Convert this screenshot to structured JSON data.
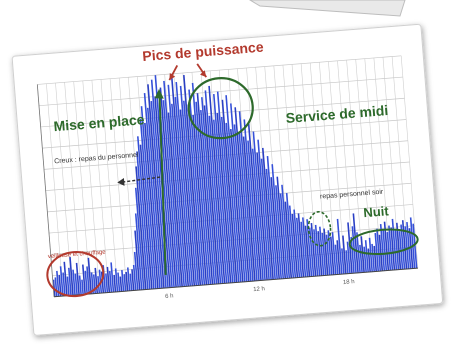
{
  "chart_data": {
    "type": "bar",
    "series": [
      {
        "values": [
          8,
          9,
          12,
          10,
          14,
          11,
          16,
          9,
          13,
          18,
          12,
          10,
          15,
          9,
          7,
          14,
          11,
          13,
          17,
          10,
          9,
          12,
          8,
          11,
          10,
          13,
          9,
          12,
          10,
          14,
          8,
          11,
          9,
          7,
          10,
          8,
          9,
          11,
          8,
          10,
          12,
          18,
          28,
          36,
          48,
          58,
          65,
          72,
          68,
          80,
          86,
          78,
          92,
          85,
          96,
          88,
          98,
          90,
          100,
          84,
          94,
          88,
          97,
          82,
          95,
          86,
          100,
          89,
          96,
          83,
          94,
          87,
          99,
          85,
          92,
          80,
          95,
          86,
          90,
          82,
          88,
          84,
          91,
          79,
          93,
          77,
          89,
          80,
          90,
          78,
          86,
          75,
          88,
          72,
          84,
          74,
          82,
          70,
          80,
          68,
          76,
          66,
          74,
          62,
          70,
          60,
          66,
          57,
          62,
          52,
          58,
          48,
          54,
          44,
          48,
          40,
          44,
          36,
          40,
          34,
          30,
          32,
          28,
          30,
          26,
          28,
          24,
          27,
          23,
          25,
          22,
          24,
          21,
          23,
          20,
          22,
          19,
          21,
          18,
          20,
          14,
          16,
          26,
          12,
          18,
          11,
          15,
          24,
          17,
          22,
          28,
          19,
          13,
          17,
          12,
          15,
          11,
          16,
          13,
          12,
          18,
          20,
          17,
          22,
          19,
          23,
          18,
          21,
          20,
          24,
          19,
          22,
          18,
          21,
          23,
          20,
          22,
          19,
          24,
          21
        ]
      }
    ],
    "ylim": [
      0,
      100
    ],
    "x_ticks": [
      "6 h",
      "12 h",
      "18 h"
    ],
    "annotations": [
      {
        "id": "peaks",
        "text": "Pics de puissance",
        "color": "#b33a2e"
      },
      {
        "id": "setup",
        "text": "Mise en place",
        "color": "#2d6a2b"
      },
      {
        "id": "staff_meal",
        "text": "Creux : repas du personnel",
        "color": "#333333"
      },
      {
        "id": "lunch",
        "text": "Service de midi",
        "color": "#2d6a2b"
      },
      {
        "id": "evening_meal",
        "text": "repas personnel soir",
        "color": "#333333"
      },
      {
        "id": "night",
        "text": "Nuit",
        "color": "#2d6a2b"
      },
      {
        "id": "night_left",
        "text": "veilleuse et chauffage",
        "color": "#b33a2e"
      }
    ],
    "grid": true
  }
}
